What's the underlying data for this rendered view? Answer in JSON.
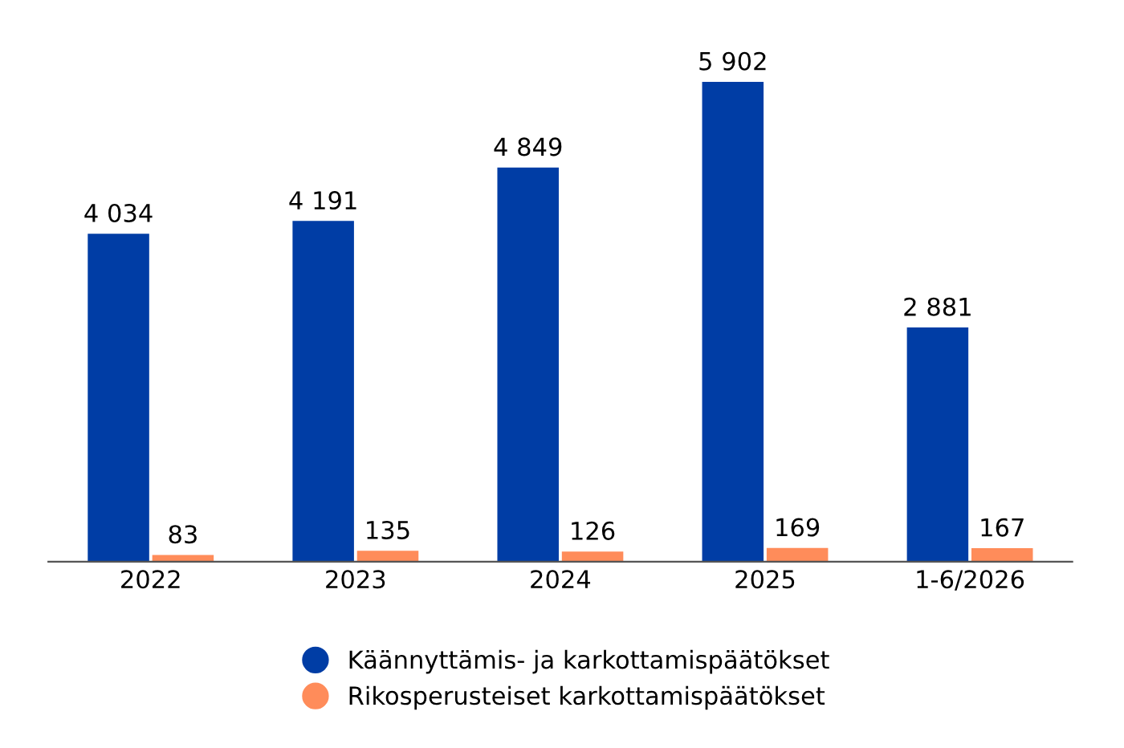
{
  "chart_data": {
    "type": "bar",
    "categories": [
      "2022",
      "2023",
      "2024",
      "2025",
      "1-6/2026"
    ],
    "series": [
      {
        "name": "Käännyttämis- ja karkottamispäätökset",
        "color": "#003da5",
        "values": [
          4034,
          4191,
          4849,
          5902,
          2881
        ],
        "value_labels": [
          "4 034",
          "4 191",
          "4 849",
          "5 902",
          "2 881"
        ]
      },
      {
        "name": "Rikosperusteiset karkottamispäätökset",
        "color": "#ff8c5a",
        "values": [
          83,
          135,
          126,
          169,
          167
        ],
        "value_labels": [
          "83",
          "135",
          "126",
          "169",
          "167"
        ]
      }
    ],
    "legend": "bottom",
    "grid": false,
    "tick_labels": "x"
  }
}
